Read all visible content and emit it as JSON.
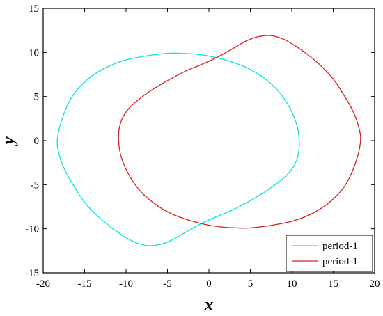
{
  "chart_data": {
    "type": "line",
    "xlabel": "x",
    "ylabel": "y",
    "xlim": [
      -20,
      20
    ],
    "ylim": [
      -15,
      15
    ],
    "xticks": [
      -20,
      -15,
      -10,
      -5,
      0,
      5,
      10,
      15,
      20
    ],
    "yticks": [
      -15,
      -10,
      -5,
      0,
      5,
      10,
      15
    ],
    "grid": false,
    "legend_position": "bottom-right",
    "series": [
      {
        "name": "period-1",
        "color": "#00e5e5",
        "x": [
          -18.3,
          -17.7,
          -16.5,
          -14.8,
          -12.6,
          -10.2,
          -7.6,
          -5.0,
          -3.3,
          -1.5,
          0.5,
          2.5,
          4.5,
          6.5,
          8.3,
          9.7,
          10.6,
          10.9,
          10.8,
          10.3,
          9.5,
          8.3,
          6.8,
          5.0,
          3.0,
          1.5,
          0.0,
          -1.5,
          -3.0,
          -4.5,
          -6.0,
          -7.5,
          -9.0,
          -10.5,
          -12.0,
          -13.5,
          -15.0,
          -16.2,
          -17.3,
          -18.0,
          -18.3
        ],
        "y": [
          0.0,
          2.5,
          5.0,
          6.8,
          8.2,
          9.1,
          9.6,
          9.9,
          9.9,
          9.8,
          9.5,
          9.0,
          8.3,
          7.2,
          5.7,
          3.8,
          1.8,
          0.0,
          -1.5,
          -2.8,
          -3.8,
          -4.8,
          -5.8,
          -6.8,
          -7.8,
          -8.4,
          -9.0,
          -9.7,
          -10.5,
          -11.3,
          -11.8,
          -11.9,
          -11.5,
          -10.7,
          -9.7,
          -8.5,
          -7.0,
          -5.3,
          -3.5,
          -1.8,
          0.0
        ]
      },
      {
        "name": "period-1",
        "color": "#d62020",
        "x": [
          18.3,
          17.7,
          16.5,
          14.8,
          12.6,
          10.2,
          7.6,
          5.0,
          3.3,
          1.5,
          -0.5,
          -2.5,
          -4.5,
          -6.5,
          -8.3,
          -9.7,
          -10.6,
          -10.9,
          -10.8,
          -10.3,
          -9.5,
          -8.3,
          -6.8,
          -5.0,
          -3.0,
          -1.5,
          0.0,
          1.5,
          3.0,
          4.5,
          6.0,
          7.5,
          9.0,
          10.5,
          12.0,
          13.5,
          15.0,
          16.2,
          17.3,
          18.0,
          18.3
        ],
        "y": [
          0.0,
          -2.5,
          -5.0,
          -6.8,
          -8.2,
          -9.1,
          -9.6,
          -9.9,
          -9.9,
          -9.8,
          -9.5,
          -9.0,
          -8.3,
          -7.2,
          -5.7,
          -3.8,
          -1.8,
          0.0,
          1.5,
          2.8,
          3.8,
          4.8,
          5.8,
          6.8,
          7.8,
          8.4,
          9.0,
          9.7,
          10.5,
          11.3,
          11.8,
          11.9,
          11.5,
          10.7,
          9.7,
          8.5,
          7.0,
          5.3,
          3.5,
          1.8,
          0.0
        ]
      }
    ]
  }
}
